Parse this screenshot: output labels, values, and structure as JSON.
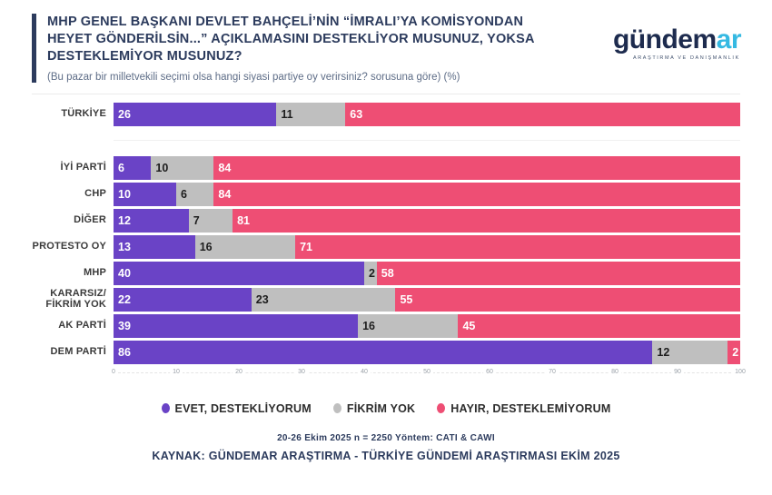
{
  "header": {
    "title": "MHP GENEL BAŞKANI DEVLET BAHÇELİ’NİN “İMRALI’YA KOMİSYONDAN HEYET GÖNDERİLSİN...” AÇIKLAMASINI DESTEKLİYOR MUSUNUZ, YOKSA DESTEKLEMİYOR MUSUNUZ?",
    "subtitle": "(Bu pazar bir milletvekili seçimi olsa hangi siyasi partiye oy verirsiniz? sorusuna göre) (%)",
    "logo": {
      "main": "gündem",
      "accent": "ar",
      "tagline": "ARAŞTIRMA VE DANIŞMANLIK",
      "main_color": "#1d2b4e",
      "accent_color": "#35b9e2"
    }
  },
  "chart_data": {
    "type": "bar",
    "orientation": "horizontal",
    "stacked": true,
    "categories": [
      "TÜRKİYE",
      "İYİ PARTİ",
      "CHP",
      "DİĞER",
      "PROTESTO OY",
      "MHP",
      "KARARSIZ/ FİKRİM YOK",
      "AK PARTİ",
      "DEM PARTİ"
    ],
    "series": [
      {
        "name": "EVET, DESTEKLİYORUM",
        "color": "#6a43c6",
        "label_color": "#ffffff",
        "values": [
          26,
          6,
          10,
          12,
          13,
          40,
          22,
          39,
          86
        ]
      },
      {
        "name": "FİKRİM YOK",
        "color": "#bfbfbf",
        "label_color": "#1d1d1d",
        "values": [
          11,
          10,
          6,
          7,
          16,
          2,
          23,
          16,
          12
        ]
      },
      {
        "name": "HAYIR, DESTEKLEMİYORUM",
        "color": "#ee4e74",
        "label_color": "#ffffff",
        "values": [
          63,
          84,
          84,
          81,
          71,
          58,
          55,
          45,
          2
        ]
      }
    ],
    "xlim": [
      0,
      100
    ],
    "x_ticks": [
      0,
      10,
      20,
      30,
      40,
      50,
      60,
      70,
      80,
      90,
      100
    ],
    "separator_after_category": 0,
    "legend_position": "bottom",
    "grid": false
  },
  "footer": {
    "methodology": "20-26 Ekim 2025 n = 2250 Yöntem: CATI & CAWI",
    "source": "KAYNAK: GÜNDEMAR ARAŞTIRMA - TÜRKİYE GÜNDEMİ ARAŞTIRMASI EKİM 2025"
  }
}
